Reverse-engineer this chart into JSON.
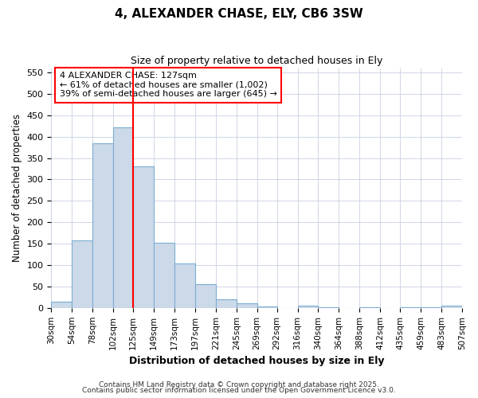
{
  "title1": "4, ALEXANDER CHASE, ELY, CB6 3SW",
  "title2": "Size of property relative to detached houses in Ely",
  "xlabel": "Distribution of detached houses by size in Ely",
  "ylabel": "Number of detached properties",
  "bar_color": "#ccd9e8",
  "bar_edge_color": "#7aadd4",
  "background_color": "#ffffff",
  "grid_color": "#c8d0e0",
  "vline_color": "red",
  "vline_x": 125,
  "annotation_text": "4 ALEXANDER CHASE: 127sqm\n← 61% of detached houses are smaller (1,002)\n39% of semi-detached houses are larger (645) →",
  "annotation_box_color": "white",
  "annotation_border_color": "red",
  "bin_edges": [
    30,
    54,
    78,
    102,
    125,
    149,
    173,
    197,
    221,
    245,
    269,
    292,
    316,
    340,
    364,
    388,
    412,
    435,
    459,
    483,
    507
  ],
  "counts": [
    14,
    157,
    385,
    422,
    330,
    152,
    103,
    55,
    20,
    10,
    4,
    0,
    5,
    1,
    0,
    2,
    0,
    1,
    2,
    5
  ],
  "ylim": [
    0,
    560
  ],
  "yticks": [
    0,
    50,
    100,
    150,
    200,
    250,
    300,
    350,
    400,
    450,
    500,
    550
  ],
  "xtick_labels": [
    "30sqm",
    "54sqm",
    "78sqm",
    "102sqm",
    "125sqm",
    "149sqm",
    "173sqm",
    "197sqm",
    "221sqm",
    "245sqm",
    "269sqm",
    "292sqm",
    "316sqm",
    "340sqm",
    "364sqm",
    "388sqm",
    "412sqm",
    "435sqm",
    "459sqm",
    "483sqm",
    "507sqm"
  ],
  "footer1": "Contains HM Land Registry data © Crown copyright and database right 2025.",
  "footer2": "Contains public sector information licensed under the Open Government Licence v3.0."
}
